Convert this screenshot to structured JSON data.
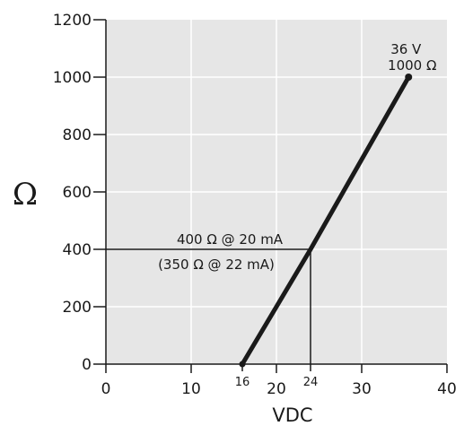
{
  "chart_data": {
    "type": "line",
    "xlabel": "VDC",
    "ylabel": "Ω",
    "xlim": [
      0,
      40
    ],
    "ylim": [
      0,
      1200
    ],
    "x_ticks": [
      0,
      10,
      20,
      30,
      40
    ],
    "y_ticks": [
      0,
      200,
      400,
      600,
      800,
      1000,
      1200
    ],
    "extra_x_ticks": [
      16,
      24
    ],
    "grid": true,
    "colors": {
      "background": "#e6e6e6",
      "grid": "#ffffff",
      "line": "#1a1a1a"
    },
    "series": [
      {
        "x": [
          16,
          24,
          35.5
        ],
        "y": [
          0,
          400,
          1000
        ]
      }
    ],
    "reference_lines": [
      {
        "from": [
          0,
          400
        ],
        "to": [
          24,
          400
        ]
      },
      {
        "from": [
          24,
          400
        ],
        "to": [
          24,
          0
        ]
      }
    ],
    "annotations": [
      {
        "text": "400 Ω @ 20 mA",
        "x": 16,
        "y": 400
      },
      {
        "text": "(350 Ω @ 22 mA)",
        "x": 16,
        "y": 400
      },
      {
        "text": "36 V",
        "x": 35.5,
        "y": 1000
      },
      {
        "text": "1000 Ω",
        "x": 35.5,
        "y": 1000
      }
    ]
  }
}
